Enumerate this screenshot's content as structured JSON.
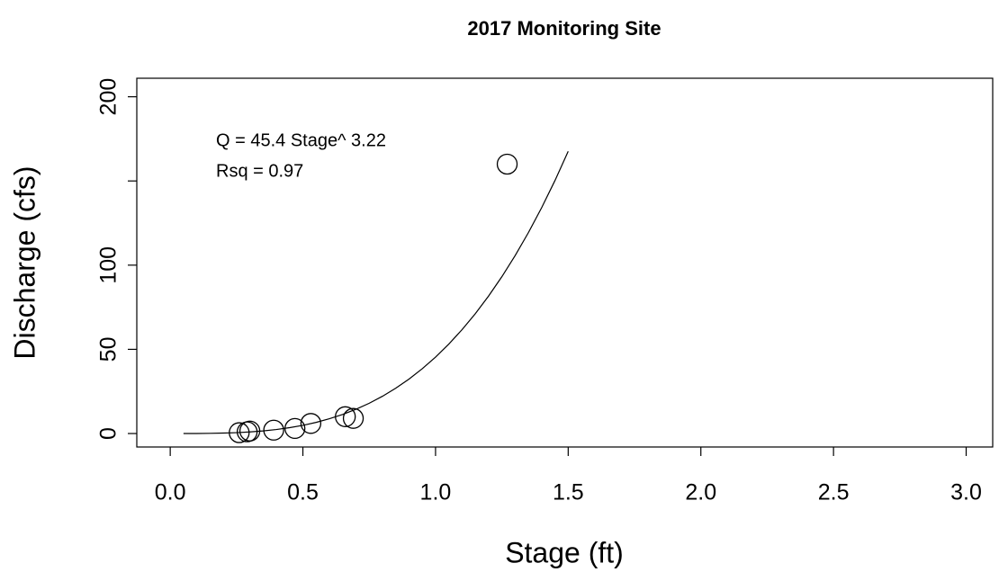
{
  "chart_data": {
    "type": "scatter",
    "title": "2017 Monitoring Site",
    "xlabel": "Stage (ft)",
    "ylabel": "Discharge (cfs)",
    "annotations": [
      "Q = 45.4 Stage^ 3.22",
      "Rsq = 0.97"
    ],
    "xlim": [
      -0.126,
      3.1
    ],
    "ylim": [
      -8,
      211
    ],
    "xticks": [
      {
        "value": 0,
        "label": "0.0"
      },
      0.5,
      {
        "value": 1,
        "label": "1.0"
      },
      1.5,
      {
        "value": 2,
        "label": "2.0"
      },
      2.5,
      {
        "value": 3,
        "label": "3.0"
      }
    ],
    "yticks": [
      0,
      50,
      100,
      {
        "value": 150,
        "label": null
      },
      200
    ],
    "color": "#000000",
    "points": {
      "x": [
        0.26,
        0.29,
        0.3,
        0.39,
        0.47,
        0.53,
        0.66,
        0.69,
        1.27
      ],
      "values": [
        0.5,
        1,
        1.5,
        2,
        3,
        6,
        10,
        9,
        160
      ]
    },
    "fit": {
      "type": "line",
      "x": [
        0.05,
        0.1,
        0.15,
        0.2,
        0.25,
        0.3,
        0.35,
        0.4,
        0.45,
        0.5,
        0.55,
        0.6,
        0.65,
        0.7,
        0.75,
        0.8,
        0.85,
        0.9,
        0.95,
        1.0,
        1.05,
        1.1,
        1.15,
        1.2,
        1.25,
        1.3,
        1.35,
        1.4,
        1.45,
        1.5
      ],
      "values": [
        0.0,
        0.03,
        0.1,
        0.26,
        0.52,
        0.94,
        1.54,
        2.37,
        3.47,
        4.87,
        6.62,
        8.77,
        11.34,
        14.4,
        17.98,
        22.13,
        26.9,
        32.34,
        38.49,
        45.4,
        53.12,
        61.71,
        71.2,
        81.67,
        93.14,
        105.67,
        119.32,
        134.15,
        150.2,
        167.6
      ]
    }
  }
}
